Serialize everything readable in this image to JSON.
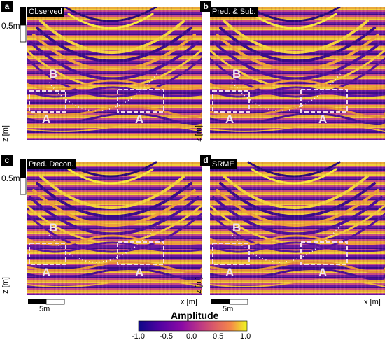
{
  "panels": [
    {
      "letter": "a",
      "title": "Observed",
      "label_b": "B",
      "label_a1": "A",
      "label_a2": "A"
    },
    {
      "letter": "b",
      "title": "Pred. & Sub.",
      "label_b": "B",
      "label_a1": "A",
      "label_a2": "A"
    },
    {
      "letter": "c",
      "title": "Pred. Decon.",
      "label_b": "B",
      "label_a1": "A",
      "label_a2": "A"
    },
    {
      "letter": "d",
      "title": "SRME",
      "label_b": "B",
      "label_a1": "A",
      "label_a2": "A"
    }
  ],
  "axes": {
    "z_label": "z [m]",
    "x_label": "x [m]",
    "vertical_scale": "0.5m",
    "horizontal_scale": "5m"
  },
  "colorbar": {
    "title": "Amplitude",
    "ticks": [
      "-1.0",
      "-0.5",
      "0.0",
      "0.5",
      "1.0"
    ],
    "colors": [
      "#0d0887",
      "#6a00a8",
      "#b12a90",
      "#e16462",
      "#fca636",
      "#f0f921"
    ]
  }
}
